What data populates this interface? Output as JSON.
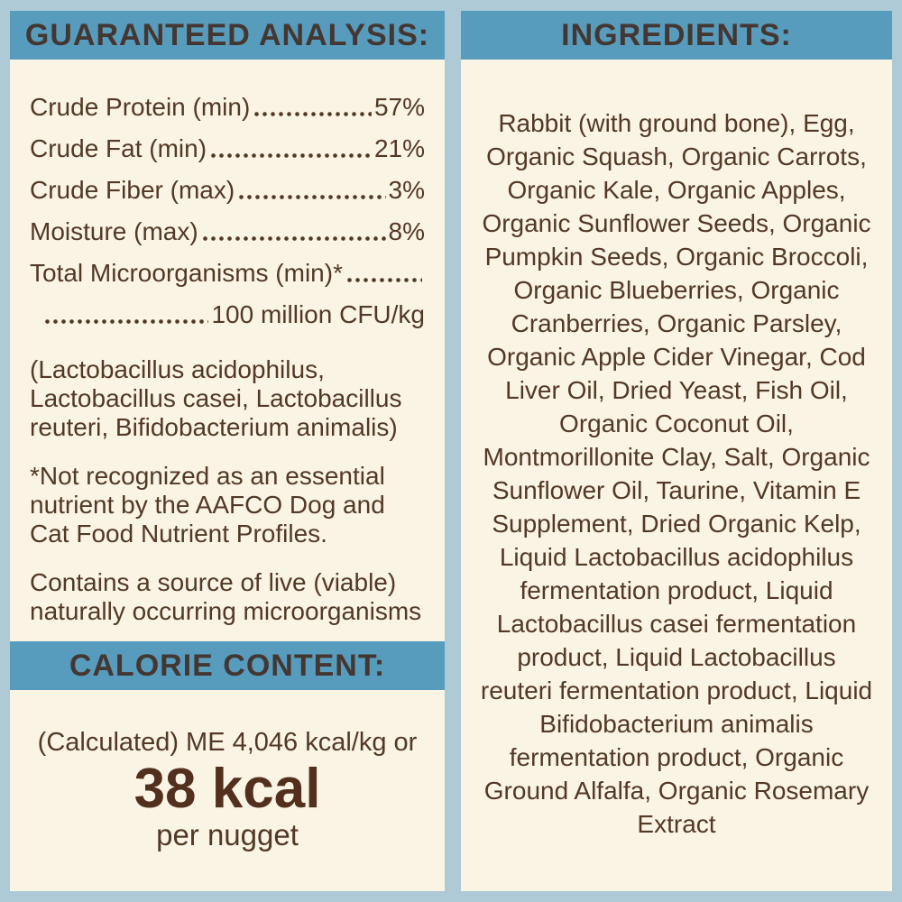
{
  "colors": {
    "page_background": "#aecad6",
    "header_bar": "#579bbd",
    "panel_background": "#faf4e5",
    "body_text": "#533826",
    "header_text": "#443731",
    "calorie_highlight": "#53301d"
  },
  "guaranteed_analysis": {
    "title": "GUARANTEED ANALYSIS:",
    "rows": [
      {
        "label": "Crude Protein (min)",
        "value": "57%"
      },
      {
        "label": "Crude Fat (min)",
        "value": "21%"
      },
      {
        "label": "Crude Fiber (max)",
        "value": "3%"
      },
      {
        "label": "Moisture (max)",
        "value": "8%"
      },
      {
        "label": "Total Microorganisms (min)*",
        "value": ""
      },
      {
        "label": "",
        "value": "100 million CFU/kg"
      }
    ],
    "microorganisms_list": "(Lactobacillus acidophilus, Lactobacillus casei, Lactobacillus reuteri, Bifidobacterium animalis)",
    "footnote": "*Not recognized as an essential nutrient by the AAFCO Dog and Cat Food Nutrient Profiles.",
    "live_note": "Contains a source of live (viable) naturally occurring microorganisms"
  },
  "calorie_content": {
    "title": "CALORIE CONTENT:",
    "line1": "(Calculated) ME 4,046 kcal/kg or",
    "big_value": "38 kcal",
    "unit_line": "per nugget"
  },
  "ingredients": {
    "title": "INGREDIENTS:",
    "text": "Rabbit (with ground bone), Egg, Organic Squash, Organic Carrots, Organic Kale, Organic Apples, Organic Sunflower Seeds, Organic Pumpkin Seeds, Organic Broccoli, Organic Blueberries, Organic Cranberries, Organic Parsley, Organic Apple Cider Vinegar, Cod Liver Oil, Dried Yeast, Fish Oil, Organic Coconut Oil, Montmorillonite Clay, Salt, Organic Sunflower Oil, Taurine, Vitamin E Supplement, Dried Organic Kelp, Liquid Lactobacillus acidophilus fermentation product, Liquid Lactobacillus casei fermentation product, Liquid Lactobacillus reuteri fermentation product, Liquid Bifidobacterium animalis fermentation product, Organic Ground Alfalfa, Organic Rosemary Extract"
  }
}
